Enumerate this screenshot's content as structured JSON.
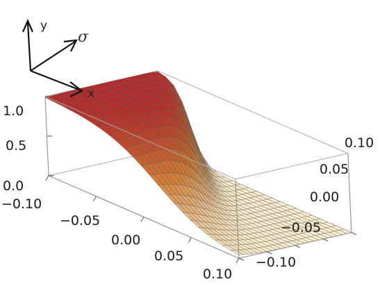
{
  "chart_data": {
    "type": "surface3d",
    "title": "",
    "z_ticks": [
      "0.0",
      "0.5",
      "1.0"
    ],
    "front_ticks": [
      "−0.10",
      "−0.05",
      "0.00",
      "0.05",
      "0.10"
    ],
    "side_ticks": [
      "−0.10",
      "−0.05",
      "0.00",
      "0.05",
      "0.10"
    ],
    "zlim": [
      0,
      1
    ],
    "front_range": [
      -0.1,
      0.1
    ],
    "side_range": [
      -0.1,
      0.1
    ],
    "surface": "kink: z rises from 0 to 1 across a tilted front that curves near the center; high (red) region to the left, low (cream) region to the right",
    "grid": true,
    "box": true,
    "colors": {
      "high": "#b4282a",
      "mid": "#e48a3a",
      "low": "#fbf3d4",
      "mesh": "#6e5a48"
    }
  },
  "orientation": {
    "labels": {
      "y": "y",
      "sigma": "σ",
      "x": "x"
    }
  }
}
